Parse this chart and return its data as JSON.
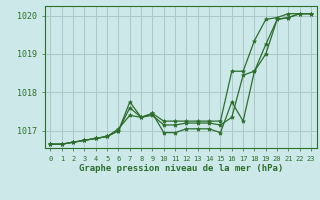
{
  "title": "Graphe pression niveau de la mer (hPa)",
  "background_color": "#cce8e8",
  "grid_color": "#aac8c8",
  "line_color": "#2d6e2d",
  "xlim": [
    -0.5,
    23.5
  ],
  "ylim": [
    1016.55,
    1020.25
  ],
  "xticks": [
    0,
    1,
    2,
    3,
    4,
    5,
    6,
    7,
    8,
    9,
    10,
    11,
    12,
    13,
    14,
    15,
    16,
    17,
    18,
    19,
    20,
    21,
    22,
    23
  ],
  "yticks": [
    1017,
    1018,
    1019,
    1020
  ],
  "series": [
    [
      1016.65,
      1016.65,
      1016.7,
      1016.75,
      1016.8,
      1016.85,
      1017.0,
      1017.75,
      1017.35,
      1017.45,
      1016.95,
      1016.95,
      1017.05,
      1017.05,
      1017.05,
      1016.95,
      1017.75,
      1017.25,
      1018.55,
      1019.0,
      1019.9,
      1019.95,
      1020.05,
      1020.05
    ],
    [
      1016.65,
      1016.65,
      1016.7,
      1016.75,
      1016.8,
      1016.85,
      1017.0,
      1017.6,
      1017.35,
      1017.45,
      1017.25,
      1017.25,
      1017.25,
      1017.25,
      1017.25,
      1017.25,
      1018.55,
      1018.55,
      1019.35,
      1019.9,
      1019.95,
      1020.05,
      1020.05,
      1020.05
    ],
    [
      1016.65,
      1016.65,
      1016.7,
      1016.75,
      1016.8,
      1016.85,
      1017.05,
      1017.4,
      1017.35,
      1017.4,
      1017.15,
      1017.15,
      1017.2,
      1017.2,
      1017.2,
      1017.15,
      1017.35,
      1018.45,
      1018.55,
      1019.25,
      1019.9,
      1019.95,
      1020.05,
      1020.05
    ]
  ],
  "ytick_labels": [
    "1017",
    "1018",
    "1019",
    "1020"
  ]
}
